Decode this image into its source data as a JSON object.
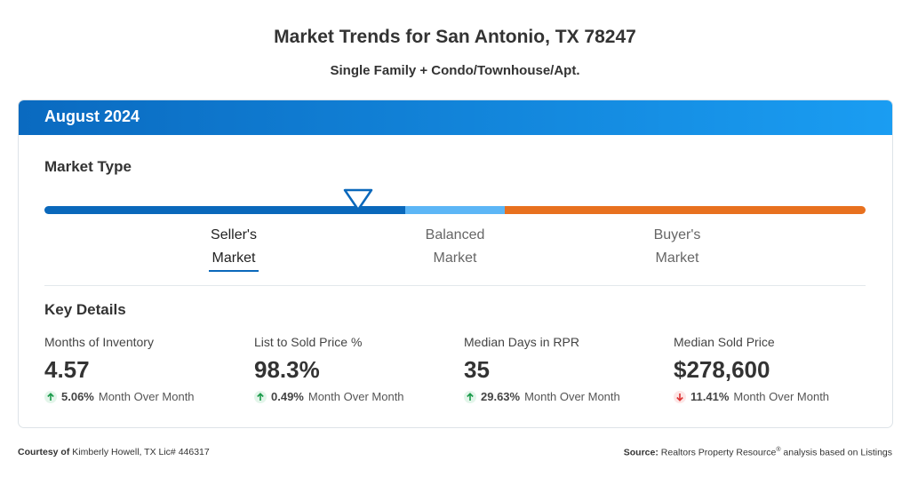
{
  "header": {
    "title": "Market Trends for San Antonio, TX 78247",
    "subtitle": "Single Family + Condo/Townhouse/Apt."
  },
  "card": {
    "period": "August 2024",
    "market_type": {
      "heading": "Market Type",
      "labels": [
        {
          "line1": "Seller's",
          "line2": "Market"
        },
        {
          "line1": "Balanced",
          "line2": "Market"
        },
        {
          "line1": "Buyer's",
          "line2": "Market"
        }
      ]
    },
    "key_details": {
      "heading": "Key Details",
      "items": [
        {
          "label": "Months of Inventory",
          "value": "4.57",
          "change": "5.06%",
          "note": "Month Over Month"
        },
        {
          "label": "List to Sold Price %",
          "value": "98.3%",
          "change": "0.49%",
          "note": "Month Over Month"
        },
        {
          "label": "Median Days in RPR",
          "value": "35",
          "change": "29.63%",
          "note": "Month Over Month"
        },
        {
          "label": "Median Sold Price",
          "value": "$278,600",
          "change": "11.41%",
          "note": "Month Over Month"
        }
      ]
    }
  },
  "footer": {
    "courtesy_label": "Courtesy of",
    "courtesy_text": "Kimberly Howell, TX Lic# 446317",
    "source_label": "Source:",
    "source_text": "Realtors Property Resource",
    "source_mark": "®",
    "source_tail": " analysis based on Listings"
  }
}
